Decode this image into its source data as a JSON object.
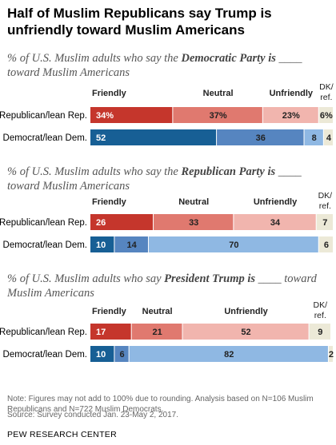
{
  "title": "Half of Muslim Republicans say Trump is unfriendly toward Muslim Americans",
  "note": "Note: Figures may not add to 100% due to rounding. Analysis based on N=106 Muslim Republicans and N=722 Muslim Democrats.",
  "source": "Source: Survey conducted Jan. 23-May 2, 2017.",
  "org": "PEW RESEARCH CENTER",
  "colors": {
    "rep": [
      "#c5362c",
      "#e0796f",
      "#f1b5ae",
      "#ece9d7"
    ],
    "dem": [
      "#175f95",
      "#5685c0",
      "#8fb8e3",
      "#ece9d7"
    ]
  },
  "chart_data": [
    {
      "type": "bar",
      "orientation": "horizontal-stacked",
      "subtitle_pre": "% of U.S. Muslim adults who say the ",
      "subtitle_bold": "Democratic Party is",
      "subtitle_post": " ____ toward Muslim Americans",
      "legend": [
        "Friendly",
        "Neutral",
        "Unfriendly",
        "DK/ ref."
      ],
      "categories": [
        "Republican/lean Rep.",
        "Democrat/lean Dem."
      ],
      "series": [
        {
          "name": "Friendly",
          "values": [
            34,
            52
          ],
          "labels": [
            "34%",
            "52"
          ]
        },
        {
          "name": "Neutral",
          "values": [
            37,
            36
          ],
          "labels": [
            "37%",
            "36"
          ]
        },
        {
          "name": "Unfriendly",
          "values": [
            23,
            8
          ],
          "labels": [
            "23%",
            "8"
          ]
        },
        {
          "name": "DK/ref.",
          "values": [
            6,
            4
          ],
          "labels": [
            "6%",
            "4"
          ]
        }
      ]
    },
    {
      "type": "bar",
      "orientation": "horizontal-stacked",
      "subtitle_pre": "% of U.S. Muslim adults who say the ",
      "subtitle_bold": "Republican Party is",
      "subtitle_post": " ____ toward Muslim Americans",
      "legend": [
        "Friendly",
        "Neutral",
        "Unfriendly",
        "DK/ ref."
      ],
      "categories": [
        "Republican/lean Rep.",
        "Democrat/lean Dem."
      ],
      "series": [
        {
          "name": "Friendly",
          "values": [
            26,
            10
          ],
          "labels": [
            "26",
            "10"
          ]
        },
        {
          "name": "Neutral",
          "values": [
            33,
            14
          ],
          "labels": [
            "33",
            "14"
          ]
        },
        {
          "name": "Unfriendly",
          "values": [
            34,
            70
          ],
          "labels": [
            "34",
            "70"
          ]
        },
        {
          "name": "DK/ref.",
          "values": [
            7,
            6
          ],
          "labels": [
            "7",
            "6"
          ]
        }
      ]
    },
    {
      "type": "bar",
      "orientation": "horizontal-stacked",
      "subtitle_pre": "% of U.S. Muslim adults who say ",
      "subtitle_bold": "President Trump is",
      "subtitle_post": " ____ toward Muslim Americans",
      "legend": [
        "Friendly",
        "Neutral",
        "Unfriendly",
        "DK/ ref."
      ],
      "categories": [
        "Republican/lean Rep.",
        "Democrat/lean Dem."
      ],
      "series": [
        {
          "name": "Friendly",
          "values": [
            17,
            10
          ],
          "labels": [
            "17",
            "10"
          ]
        },
        {
          "name": "Neutral",
          "values": [
            21,
            6
          ],
          "labels": [
            "21",
            "6"
          ]
        },
        {
          "name": "Unfriendly",
          "values": [
            52,
            82
          ],
          "labels": [
            "52",
            "82"
          ]
        },
        {
          "name": "DK/ref.",
          "values": [
            9,
            2
          ],
          "labels": [
            "9",
            "2"
          ]
        }
      ]
    }
  ]
}
